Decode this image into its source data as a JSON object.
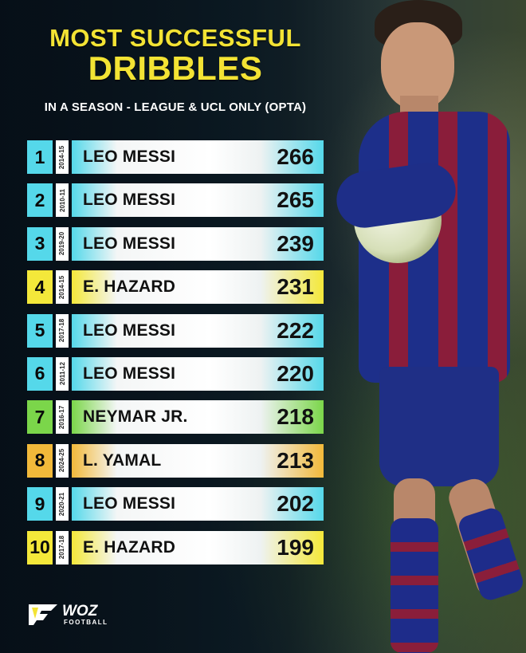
{
  "header": {
    "title_line1": "MOST SUCCESSFUL",
    "title_line2": "DRIBBLES",
    "subtitle": "IN A SEASON - LEAGUE & UCL ONLY (OPTA)"
  },
  "colors": {
    "cyan": "#55d8ea",
    "yellow": "#f4e83a",
    "green": "#7bd64a",
    "orange": "#f2b93a",
    "title": "#f3e334"
  },
  "rows": [
    {
      "rank": "1",
      "season": "2014-15",
      "name": "LEO MESSI",
      "value": "266",
      "color": "cyan"
    },
    {
      "rank": "2",
      "season": "2010-11",
      "name": "LEO MESSI",
      "value": "265",
      "color": "cyan"
    },
    {
      "rank": "3",
      "season": "2019-20",
      "name": "LEO MESSI",
      "value": "239",
      "color": "cyan"
    },
    {
      "rank": "4",
      "season": "2014-15",
      "name": "E. HAZARD",
      "value": "231",
      "color": "yellow"
    },
    {
      "rank": "5",
      "season": "2017-18",
      "name": "LEO MESSI",
      "value": "222",
      "color": "cyan"
    },
    {
      "rank": "6",
      "season": "2011-12",
      "name": "LEO MESSI",
      "value": "220",
      "color": "cyan"
    },
    {
      "rank": "7",
      "season": "2016-17",
      "name": "NEYMAR JR.",
      "value": "218",
      "color": "green"
    },
    {
      "rank": "8",
      "season": "2024-25",
      "name": "L. YAMAL",
      "value": "213",
      "color": "orange"
    },
    {
      "rank": "9",
      "season": "2020-21",
      "name": "LEO MESSI",
      "value": "202",
      "color": "cyan"
    },
    {
      "rank": "10",
      "season": "2017-18",
      "name": "E. HAZARD",
      "value": "199",
      "color": "yellow"
    }
  ],
  "logo": {
    "name": "WOZ",
    "sub": "FOOTBALL",
    "icon": "woz-logo-icon"
  }
}
